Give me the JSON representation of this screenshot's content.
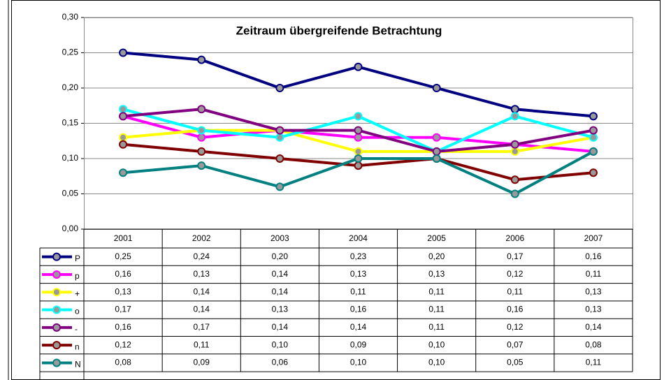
{
  "chart_data": {
    "type": "line",
    "title": "Zeitraum übergreifende Betrachtung",
    "categories": [
      "2001",
      "2002",
      "2003",
      "2004",
      "2005",
      "2006",
      "2007"
    ],
    "ylim": [
      0,
      0.3
    ],
    "yticks": [
      {
        "value": 0,
        "label": "0,00"
      },
      {
        "value": 0.05,
        "label": "0,05"
      },
      {
        "value": 0.1,
        "label": "0,10"
      },
      {
        "value": 0.15,
        "label": "0,15"
      },
      {
        "value": 0.2,
        "label": "0,20"
      },
      {
        "value": 0.25,
        "label": "0,25"
      },
      {
        "value": 0.3,
        "label": "0,30"
      }
    ],
    "grid": true,
    "series": [
      {
        "name": "P",
        "color": "#000080",
        "values": [
          0.25,
          0.24,
          0.2,
          0.23,
          0.2,
          0.17,
          0.16
        ],
        "value_labels": [
          "0,25",
          "0,24",
          "0,20",
          "0,23",
          "0,20",
          "0,17",
          "0,16"
        ]
      },
      {
        "name": "p",
        "color": "#ff00ff",
        "values": [
          0.16,
          0.13,
          0.14,
          0.13,
          0.13,
          0.12,
          0.11
        ],
        "value_labels": [
          "0,16",
          "0,13",
          "0,14",
          "0,13",
          "0,13",
          "0,12",
          "0,11"
        ]
      },
      {
        "name": "+",
        "color": "#ffff00",
        "values": [
          0.13,
          0.14,
          0.14,
          0.11,
          0.11,
          0.11,
          0.13
        ],
        "value_labels": [
          "0,13",
          "0,14",
          "0,14",
          "0,11",
          "0,11",
          "0,11",
          "0,13"
        ]
      },
      {
        "name": "o",
        "color": "#00ffff",
        "values": [
          0.17,
          0.14,
          0.13,
          0.16,
          0.11,
          0.16,
          0.13
        ],
        "value_labels": [
          "0,17",
          "0,14",
          "0,13",
          "0,16",
          "0,11",
          "0,16",
          "0,13"
        ]
      },
      {
        "name": "-",
        "color": "#800080",
        "values": [
          0.16,
          0.17,
          0.14,
          0.14,
          0.11,
          0.12,
          0.14
        ],
        "value_labels": [
          "0,16",
          "0,17",
          "0,14",
          "0,14",
          "0,11",
          "0,12",
          "0,14"
        ]
      },
      {
        "name": "n",
        "color": "#800000",
        "values": [
          0.12,
          0.11,
          0.1,
          0.09,
          0.1,
          0.07,
          0.08
        ],
        "value_labels": [
          "0,12",
          "0,11",
          "0,10",
          "0,09",
          "0,10",
          "0,07",
          "0,08"
        ]
      },
      {
        "name": "N",
        "color": "#008080",
        "values": [
          0.08,
          0.09,
          0.06,
          0.1,
          0.1,
          0.05,
          0.11
        ],
        "value_labels": [
          "0,08",
          "0,09",
          "0,06",
          "0,10",
          "0,10",
          "0,05",
          "0,11"
        ]
      }
    ]
  }
}
